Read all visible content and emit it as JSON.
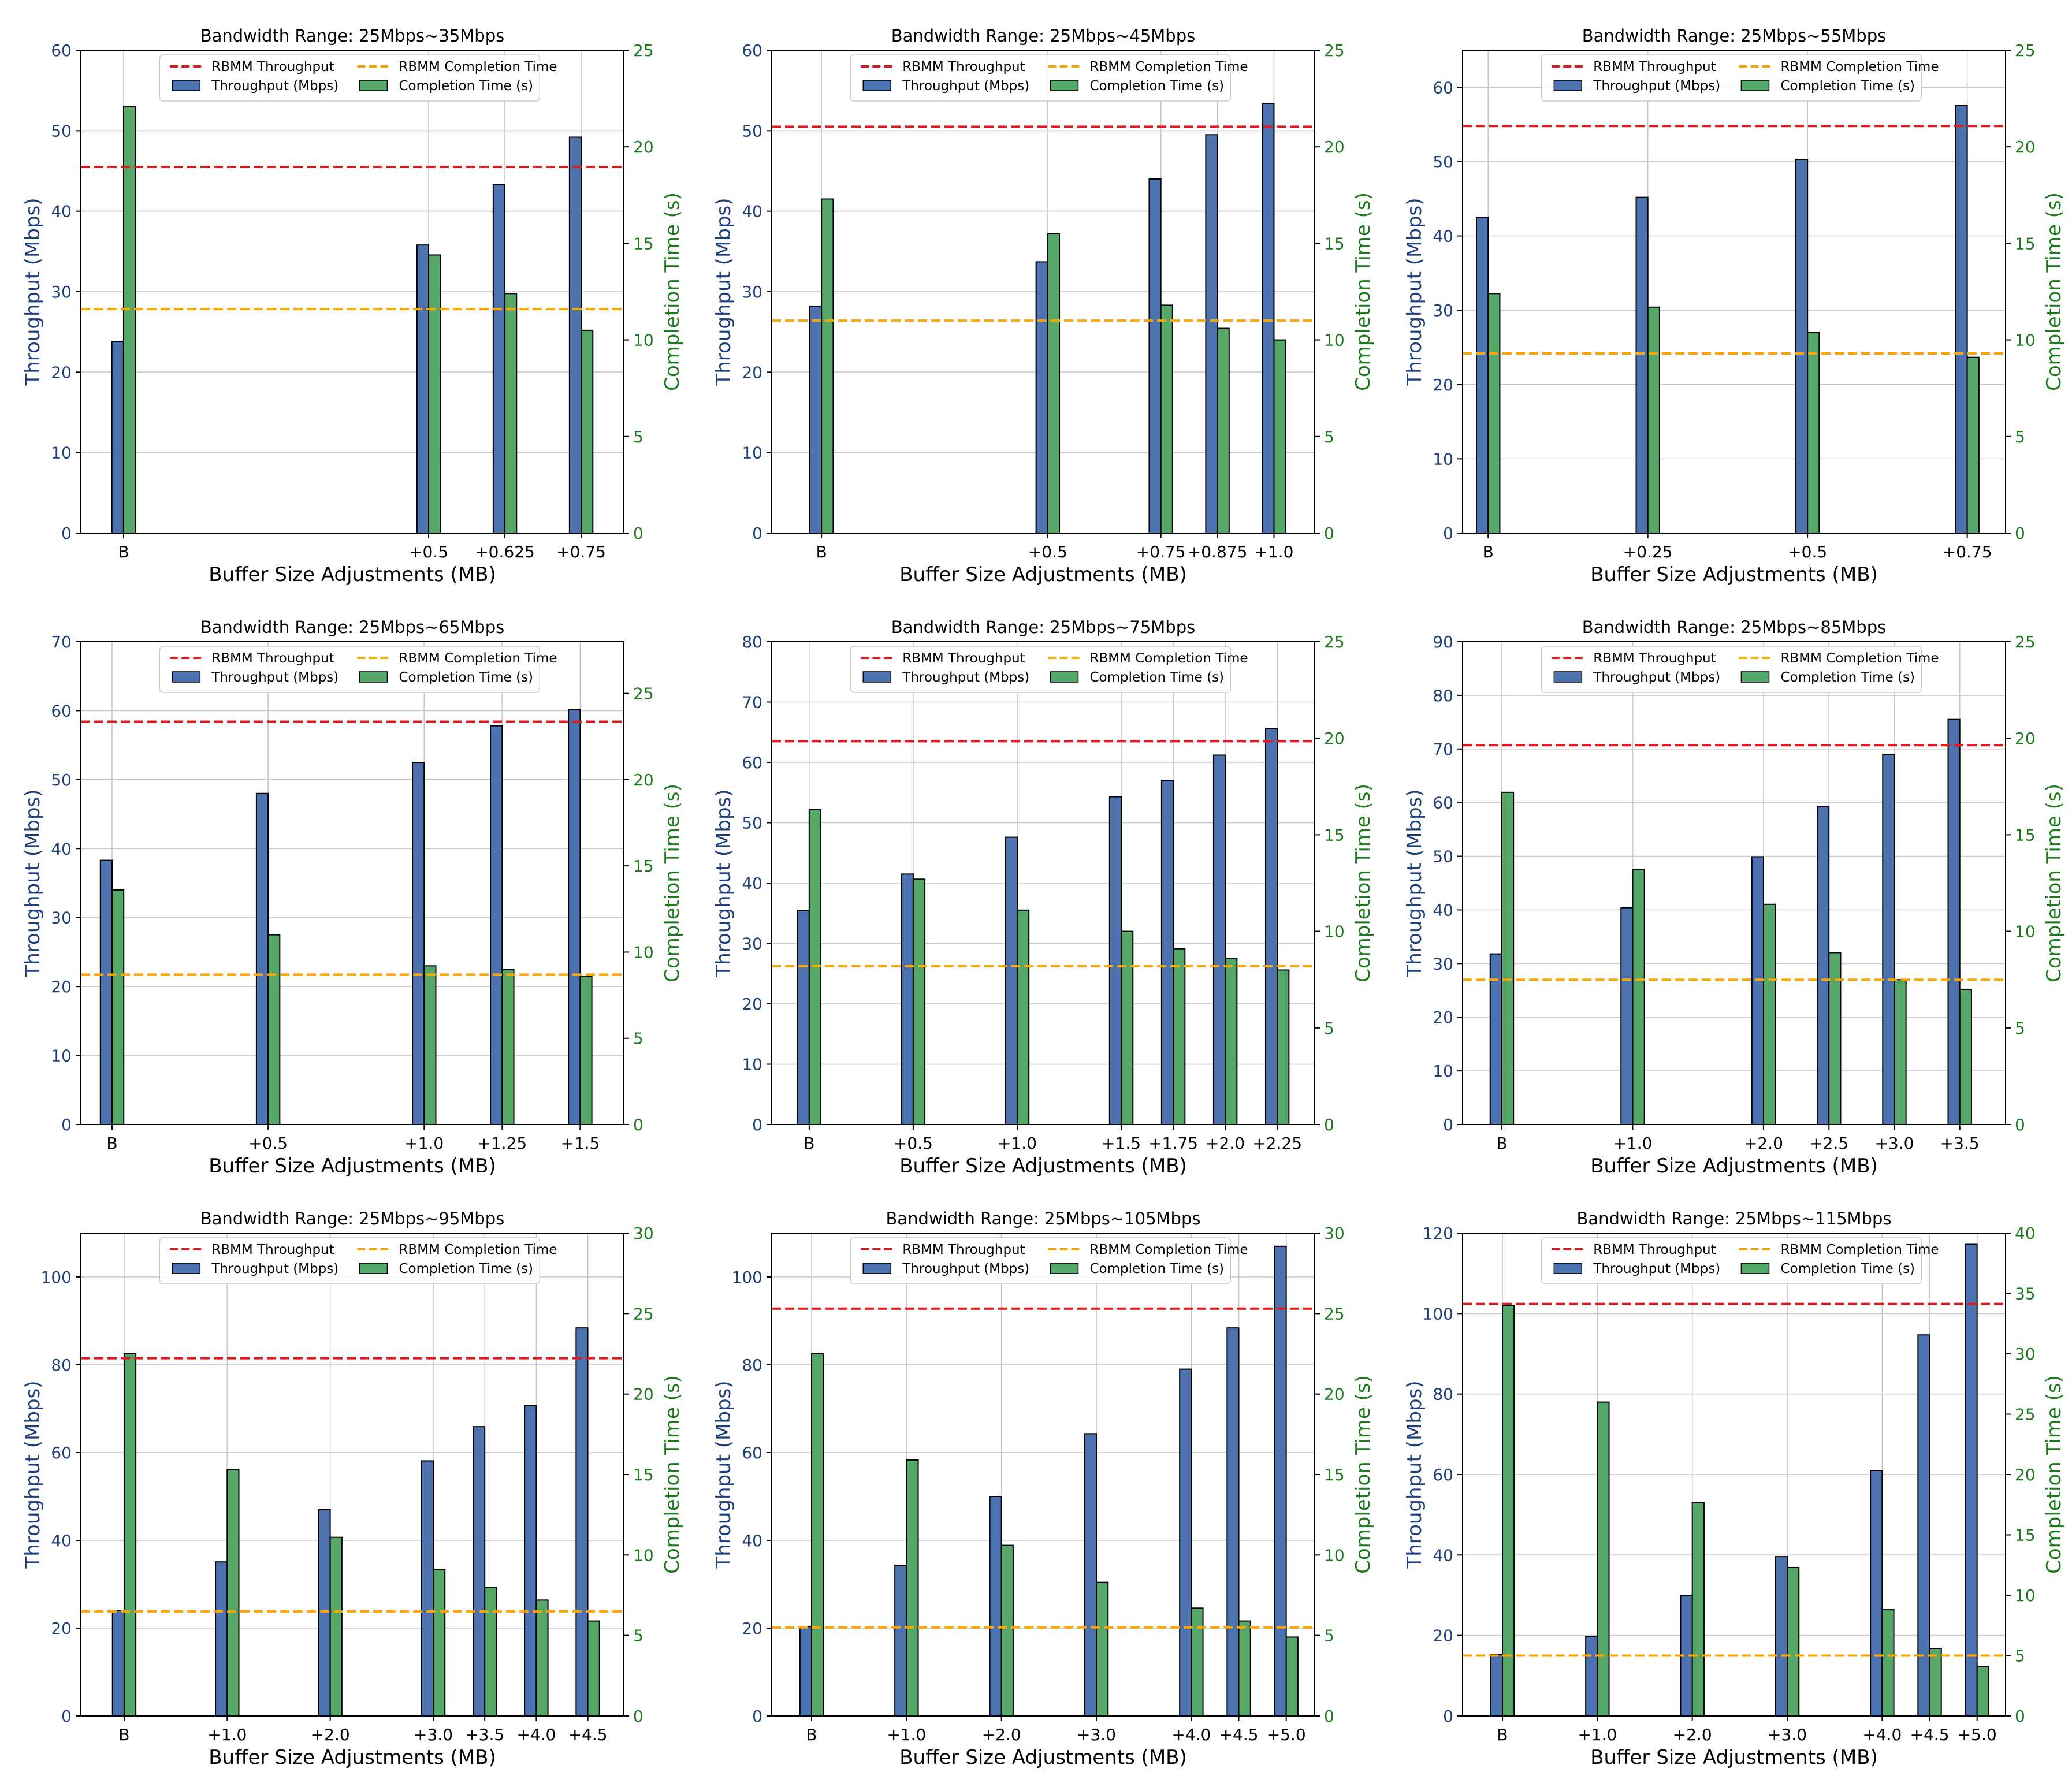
{
  "figure": {
    "title": ""
  },
  "colors": {
    "throughput_bar": "#4c72b0",
    "completion_bar": "#55a868",
    "rbmm_throughput_line": "#e31a1c",
    "rbmm_completion_line": "#ffa500",
    "throughput_axis": "#1f3f7a",
    "completion_axis": "#1b7a1b",
    "grid": "#c8c8c8",
    "bar_edge": "#000000"
  },
  "chart_data": [
    {
      "type": "bar",
      "title": "Bandwidth Range: 25Mbps~35Mbps",
      "xlabel": "Buffer Size Adjustments (MB)",
      "ylabel": "Throughput (Mbps)",
      "y2label": "Completion Time (s)",
      "x_positions": [
        0,
        0.5,
        0.625,
        0.75
      ],
      "categories": [
        "B",
        "+0.5",
        "+0.625",
        "+0.75"
      ],
      "xlim": [
        -0.07,
        0.82
      ],
      "ylim": [
        0,
        60
      ],
      "yticks": [
        0,
        10,
        20,
        30,
        40,
        50,
        60
      ],
      "y2lim": [
        0,
        25
      ],
      "y2ticks": [
        0,
        5,
        10,
        15,
        20,
        25
      ],
      "series": [
        {
          "name": "Throughput (Mbps)",
          "axis": "left",
          "values": [
            23.8,
            35.8,
            43.3,
            49.2
          ]
        },
        {
          "name": "Completion Time (s)",
          "axis": "right",
          "values": [
            22.1,
            14.4,
            12.4,
            10.5
          ]
        }
      ],
      "reference_lines": [
        {
          "name": "RBMM Throughput",
          "axis": "left",
          "value": 45.5,
          "color": "red"
        },
        {
          "name": "RBMM Completion Time",
          "axis": "right",
          "value": 11.6,
          "color": "orange"
        }
      ],
      "legend_position": "top-center",
      "grid": true
    },
    {
      "type": "bar",
      "title": "Bandwidth Range: 25Mbps~45Mbps",
      "xlabel": "Buffer Size Adjustments (MB)",
      "ylabel": "Throughput (Mbps)",
      "y2label": "Completion Time (s)",
      "x_positions": [
        0,
        0.5,
        0.75,
        0.875,
        1.0
      ],
      "categories": [
        "B",
        "+0.5",
        "+0.75",
        "+0.875",
        "+1.0"
      ],
      "xlim": [
        -0.11,
        1.09
      ],
      "ylim": [
        0,
        60
      ],
      "yticks": [
        0,
        10,
        20,
        30,
        40,
        50,
        60
      ],
      "y2lim": [
        0,
        25
      ],
      "y2ticks": [
        0,
        5,
        10,
        15,
        20,
        25
      ],
      "series": [
        {
          "name": "Throughput (Mbps)",
          "axis": "left",
          "values": [
            28.2,
            33.7,
            44.0,
            49.5,
            53.4
          ]
        },
        {
          "name": "Completion Time (s)",
          "axis": "right",
          "values": [
            17.3,
            15.5,
            11.8,
            10.6,
            10.0
          ]
        }
      ],
      "reference_lines": [
        {
          "name": "RBMM Throughput",
          "axis": "left",
          "value": 50.5,
          "color": "red"
        },
        {
          "name": "RBMM Completion Time",
          "axis": "right",
          "value": 11.0,
          "color": "orange"
        }
      ],
      "legend_position": "top-center",
      "grid": true
    },
    {
      "type": "bar",
      "title": "Bandwidth Range: 25Mbps~55Mbps",
      "xlabel": "Buffer Size Adjustments (MB)",
      "ylabel": "Throughput (Mbps)",
      "y2label": "Completion Time (s)",
      "x_positions": [
        0,
        0.25,
        0.5,
        0.75
      ],
      "categories": [
        "B",
        "+0.25",
        "+0.5",
        "+0.75"
      ],
      "xlim": [
        -0.04,
        0.81
      ],
      "ylim": [
        0,
        65
      ],
      "yticks": [
        0,
        10,
        20,
        30,
        40,
        50,
        60
      ],
      "y2lim": [
        0,
        25
      ],
      "y2ticks": [
        0,
        5,
        10,
        15,
        20,
        25
      ],
      "series": [
        {
          "name": "Throughput (Mbps)",
          "axis": "left",
          "values": [
            42.5,
            45.2,
            50.3,
            57.6
          ]
        },
        {
          "name": "Completion Time (s)",
          "axis": "right",
          "values": [
            12.4,
            11.7,
            10.4,
            9.1
          ]
        }
      ],
      "reference_lines": [
        {
          "name": "RBMM Throughput",
          "axis": "left",
          "value": 54.8,
          "color": "red"
        },
        {
          "name": "RBMM Completion Time",
          "axis": "right",
          "value": 9.3,
          "color": "orange"
        }
      ],
      "legend_position": "top-center",
      "grid": true
    },
    {
      "type": "bar",
      "title": "Bandwidth Range: 25Mbps~65Mbps",
      "xlabel": "Buffer Size Adjustments (MB)",
      "ylabel": "Throughput (Mbps)",
      "y2label": "Completion Time (s)",
      "x_positions": [
        0,
        0.5,
        1.0,
        1.25,
        1.5
      ],
      "categories": [
        "B",
        "+0.5",
        "+1.0",
        "+1.25",
        "+1.5"
      ],
      "xlim": [
        -0.1,
        1.64
      ],
      "ylim": [
        0,
        70
      ],
      "yticks": [
        0,
        10,
        20,
        30,
        40,
        50,
        60,
        70
      ],
      "y2lim": [
        0,
        28
      ],
      "y2ticks": [
        0,
        5,
        10,
        15,
        20,
        25
      ],
      "series": [
        {
          "name": "Throughput (Mbps)",
          "axis": "left",
          "values": [
            38.3,
            48.0,
            52.5,
            57.8,
            60.2
          ]
        },
        {
          "name": "Completion Time (s)",
          "axis": "right",
          "values": [
            13.6,
            11.0,
            9.2,
            9.0,
            8.6
          ]
        }
      ],
      "reference_lines": [
        {
          "name": "RBMM Throughput",
          "axis": "left",
          "value": 58.4,
          "color": "red"
        },
        {
          "name": "RBMM Completion Time",
          "axis": "right",
          "value": 8.7,
          "color": "orange"
        }
      ],
      "legend_position": "top-center",
      "grid": true
    },
    {
      "type": "bar",
      "title": "Bandwidth Range: 25Mbps~75Mbps",
      "xlabel": "Buffer Size Adjustments (MB)",
      "ylabel": "Throughput (Mbps)",
      "y2label": "Completion Time (s)",
      "x_positions": [
        0,
        0.5,
        1.0,
        1.5,
        1.75,
        2.0,
        2.25
      ],
      "categories": [
        "B",
        "+0.5",
        "+1.0",
        "+1.5",
        "+1.75",
        "+2.0",
        "+2.25"
      ],
      "xlim": [
        -0.18,
        2.43
      ],
      "ylim": [
        0,
        80
      ],
      "yticks": [
        0,
        10,
        20,
        30,
        40,
        50,
        60,
        70,
        80
      ],
      "y2lim": [
        0,
        25
      ],
      "y2ticks": [
        0,
        5,
        10,
        15,
        20,
        25
      ],
      "series": [
        {
          "name": "Throughput (Mbps)",
          "axis": "left",
          "values": [
            35.5,
            41.5,
            47.6,
            54.3,
            57.0,
            61.2,
            65.6
          ]
        },
        {
          "name": "Completion Time (s)",
          "axis": "right",
          "values": [
            16.3,
            12.7,
            11.1,
            10.0,
            9.1,
            8.6,
            8.0
          ]
        }
      ],
      "reference_lines": [
        {
          "name": "RBMM Throughput",
          "axis": "left",
          "value": 63.5,
          "color": "red"
        },
        {
          "name": "RBMM Completion Time",
          "axis": "right",
          "value": 8.2,
          "color": "orange"
        }
      ],
      "legend_position": "top-center",
      "grid": true
    },
    {
      "type": "bar",
      "title": "Bandwidth Range: 25Mbps~85Mbps",
      "xlabel": "Buffer Size Adjustments (MB)",
      "ylabel": "Throughput (Mbps)",
      "y2label": "Completion Time (s)",
      "x_positions": [
        0,
        1.0,
        2.0,
        2.5,
        3.0,
        3.5
      ],
      "categories": [
        "B",
        "+1.0",
        "+2.0",
        "+2.5",
        "+3.0",
        "+3.5"
      ],
      "xlim": [
        -0.3,
        3.85
      ],
      "ylim": [
        0,
        90
      ],
      "yticks": [
        0,
        10,
        20,
        30,
        40,
        50,
        60,
        70,
        80,
        90
      ],
      "y2lim": [
        0,
        25
      ],
      "y2ticks": [
        0,
        5,
        10,
        15,
        20,
        25
      ],
      "series": [
        {
          "name": "Throughput (Mbps)",
          "axis": "left",
          "values": [
            31.8,
            40.4,
            49.9,
            59.3,
            69.0,
            75.5
          ]
        },
        {
          "name": "Completion Time (s)",
          "axis": "right",
          "values": [
            17.2,
            13.2,
            11.4,
            8.9,
            7.5,
            7.0
          ]
        }
      ],
      "reference_lines": [
        {
          "name": "RBMM Throughput",
          "axis": "left",
          "value": 70.7,
          "color": "red"
        },
        {
          "name": "RBMM Completion Time",
          "axis": "right",
          "value": 7.5,
          "color": "orange"
        }
      ],
      "legend_position": "top-center",
      "grid": true
    },
    {
      "type": "bar",
      "title": "Bandwidth Range: 25Mbps~95Mbps",
      "xlabel": "Buffer Size Adjustments (MB)",
      "ylabel": "Throughput (Mbps)",
      "y2label": "Completion Time (s)",
      "x_positions": [
        0,
        1.0,
        2.0,
        3.0,
        3.5,
        4.0,
        4.5
      ],
      "categories": [
        "B",
        "+1.0",
        "+2.0",
        "+3.0",
        "+3.5",
        "+4.0",
        "+4.5"
      ],
      "xlim": [
        -0.42,
        4.85
      ],
      "ylim": [
        0,
        110
      ],
      "yticks": [
        0,
        20,
        40,
        60,
        80,
        100
      ],
      "y2lim": [
        0,
        30
      ],
      "y2ticks": [
        0,
        5,
        10,
        15,
        20,
        25,
        30
      ],
      "series": [
        {
          "name": "Throughput (Mbps)",
          "axis": "left",
          "values": [
            24.0,
            35.1,
            47.0,
            58.1,
            65.9,
            70.7,
            88.4
          ]
        },
        {
          "name": "Completion Time (s)",
          "axis": "right",
          "values": [
            22.5,
            15.3,
            11.1,
            9.1,
            8.0,
            7.2,
            5.9
          ]
        }
      ],
      "reference_lines": [
        {
          "name": "RBMM Throughput",
          "axis": "left",
          "value": 81.5,
          "color": "red"
        },
        {
          "name": "RBMM Completion Time",
          "axis": "right",
          "value": 6.5,
          "color": "orange"
        }
      ],
      "legend_position": "top-center",
      "grid": true
    },
    {
      "type": "bar",
      "title": "Bandwidth Range: 25Mbps~105Mbps",
      "xlabel": "Buffer Size Adjustments (MB)",
      "ylabel": "Throughput (Mbps)",
      "y2label": "Completion Time (s)",
      "x_positions": [
        0,
        1.0,
        2.0,
        3.0,
        4.0,
        4.5,
        5.0
      ],
      "categories": [
        "B",
        "+1.0",
        "+2.0",
        "+3.0",
        "+4.0",
        "+4.5",
        "+5.0"
      ],
      "xlim": [
        -0.42,
        5.3
      ],
      "ylim": [
        0,
        110
      ],
      "yticks": [
        0,
        20,
        40,
        60,
        80,
        100
      ],
      "y2lim": [
        0,
        30
      ],
      "y2ticks": [
        0,
        5,
        10,
        15,
        20,
        25,
        30
      ],
      "series": [
        {
          "name": "Throughput (Mbps)",
          "axis": "left",
          "values": [
            20.4,
            34.3,
            50.0,
            64.3,
            79.0,
            88.4,
            107.0
          ]
        },
        {
          "name": "Completion Time (s)",
          "axis": "right",
          "values": [
            22.5,
            15.9,
            10.6,
            8.3,
            6.7,
            5.9,
            4.9
          ]
        }
      ],
      "reference_lines": [
        {
          "name": "RBMM Throughput",
          "axis": "left",
          "value": 92.8,
          "color": "red"
        },
        {
          "name": "RBMM Completion Time",
          "axis": "right",
          "value": 5.5,
          "color": "orange"
        }
      ],
      "legend_position": "top-center",
      "grid": true
    },
    {
      "type": "bar",
      "title": "Bandwidth Range: 25Mbps~115Mbps",
      "xlabel": "Buffer Size Adjustments (MB)",
      "ylabel": "Throughput (Mbps)",
      "y2label": "Completion Time (s)",
      "x_positions": [
        0,
        1.0,
        2.0,
        3.0,
        4.0,
        4.5,
        5.0
      ],
      "categories": [
        "B",
        "+1.0",
        "+2.0",
        "+3.0",
        "+4.0",
        "+4.5",
        "+5.0"
      ],
      "xlim": [
        -0.42,
        5.3
      ],
      "ylim": [
        0,
        120
      ],
      "yticks": [
        0,
        20,
        40,
        60,
        80,
        100,
        120
      ],
      "y2lim": [
        0,
        40
      ],
      "y2ticks": [
        0,
        5,
        10,
        15,
        20,
        25,
        30,
        35,
        40
      ],
      "series": [
        {
          "name": "Throughput (Mbps)",
          "axis": "left",
          "values": [
            15.3,
            19.8,
            30.0,
            39.6,
            61.0,
            94.7,
            117.2
          ]
        },
        {
          "name": "Completion Time (s)",
          "axis": "right",
          "values": [
            34.0,
            26.0,
            17.7,
            12.3,
            8.8,
            5.6,
            4.1
          ]
        }
      ],
      "reference_lines": [
        {
          "name": "RBMM Throughput",
          "axis": "left",
          "value": 102.4,
          "color": "red"
        },
        {
          "name": "RBMM Completion Time",
          "axis": "right",
          "value": 5.0,
          "color": "orange"
        }
      ],
      "legend_position": "top-center",
      "grid": true
    }
  ]
}
